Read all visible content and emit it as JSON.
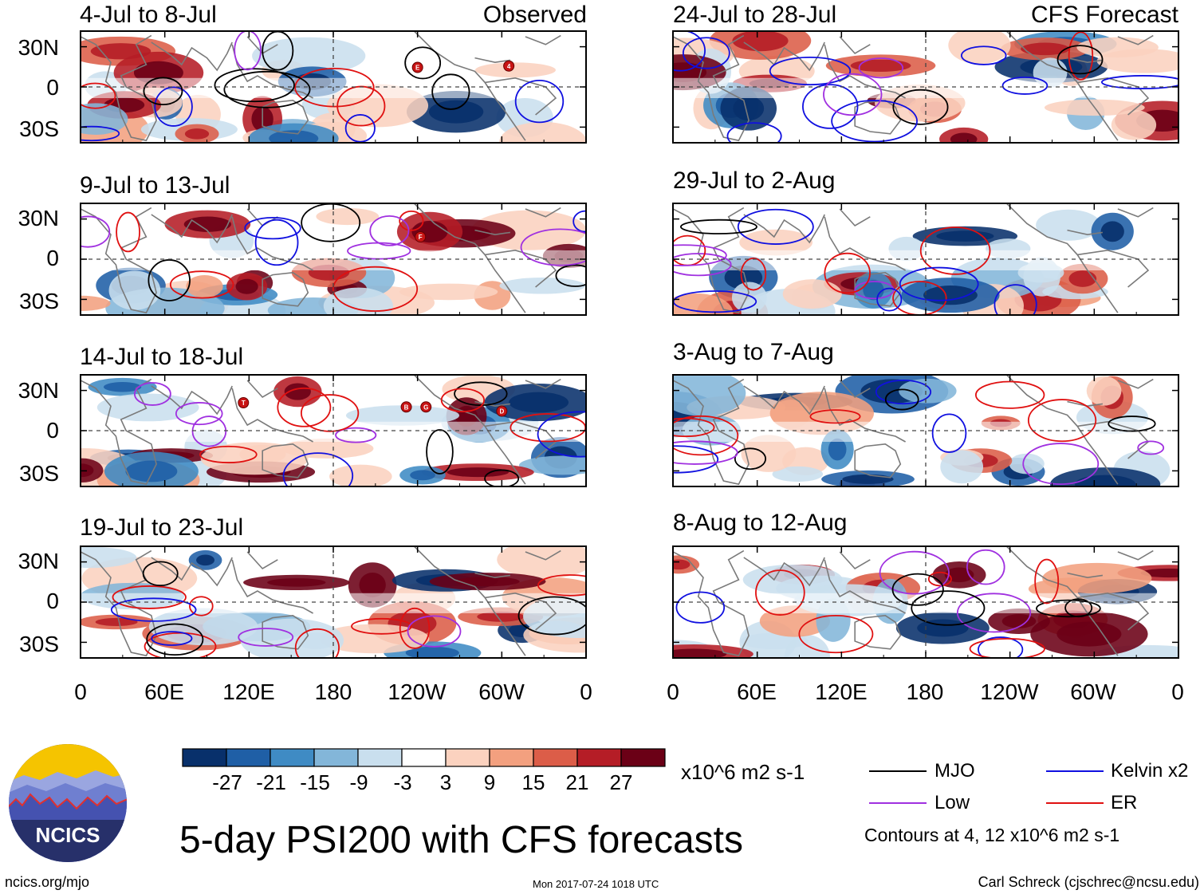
{
  "colors": {
    "mjo": "#000000",
    "kelvin": "#1010e0",
    "low": "#a030e0",
    "er": "#e01010",
    "land": "#7a7a7a",
    "neg": [
      "#08306b",
      "#1f5fa6",
      "#3f8bc4",
      "#83b6d9",
      "#c9dfee"
    ],
    "zero": "#ffffff",
    "pos": [
      "#fbd2bf",
      "#f3a07f",
      "#dc5d48",
      "#b51d26",
      "#6b0016"
    ]
  },
  "chart_data": {
    "type": "heatmap",
    "title": "5-day PSI200 with CFS forecasts",
    "units": "x10^6 m2 s-1",
    "colorbar": {
      "ticks": [
        "-27",
        "-21",
        "-15",
        "-9",
        "-3",
        "3",
        "9",
        "15",
        "21",
        "27"
      ]
    },
    "x_ticks": [
      "0",
      "60E",
      "120E",
      "180",
      "120W",
      "60W",
      "0"
    ],
    "y_ticks": [
      "30N",
      "0",
      "30S"
    ],
    "contour_note": "Contours at 4, 12 x10^6 m2 s-1",
    "legend": [
      {
        "name": "MJO",
        "color": "mjo"
      },
      {
        "name": "Kelvin x2",
        "color": "kelvin"
      },
      {
        "name": "Low",
        "color": "low"
      },
      {
        "name": "ER",
        "color": "er"
      }
    ],
    "columns": [
      {
        "header": "Observed",
        "panels": [
          {
            "period": "4-Jul to 8-Jul",
            "storms": [
              {
                "label": "E",
                "lon": 240,
                "lat": 14
              },
              {
                "label": "4",
                "lon": 305,
                "lat": 15
              }
            ]
          },
          {
            "period": "9-Jul to 13-Jul",
            "storms": [
              {
                "label": "F",
                "lon": 242,
                "lat": 16
              }
            ]
          },
          {
            "period": "14-Jul to 18-Jul",
            "storms": [
              {
                "label": "T",
                "lon": 116,
                "lat": 20
              },
              {
                "label": "B",
                "lon": 232,
                "lat": 17
              },
              {
                "label": "G",
                "lon": 246,
                "lat": 17
              },
              {
                "label": "D",
                "lon": 300,
                "lat": 14
              }
            ]
          },
          {
            "period": "19-Jul to 23-Jul",
            "storms": []
          }
        ]
      },
      {
        "header": "CFS Forecast",
        "panels": [
          {
            "period": "24-Jul to 28-Jul",
            "storms": []
          },
          {
            "period": "29-Jul to 2-Aug",
            "storms": []
          },
          {
            "period": "3-Aug to 7-Aug",
            "storms": []
          },
          {
            "period": "8-Aug to 12-Aug",
            "storms": []
          }
        ]
      }
    ]
  },
  "branding": {
    "logo_text": "NCICS",
    "website": "ncics.org/mjo",
    "timestamp": "Mon 2017-07-24 1018 UTC",
    "credit": "Carl Schreck (cjschrec@ncsu.edu)"
  }
}
